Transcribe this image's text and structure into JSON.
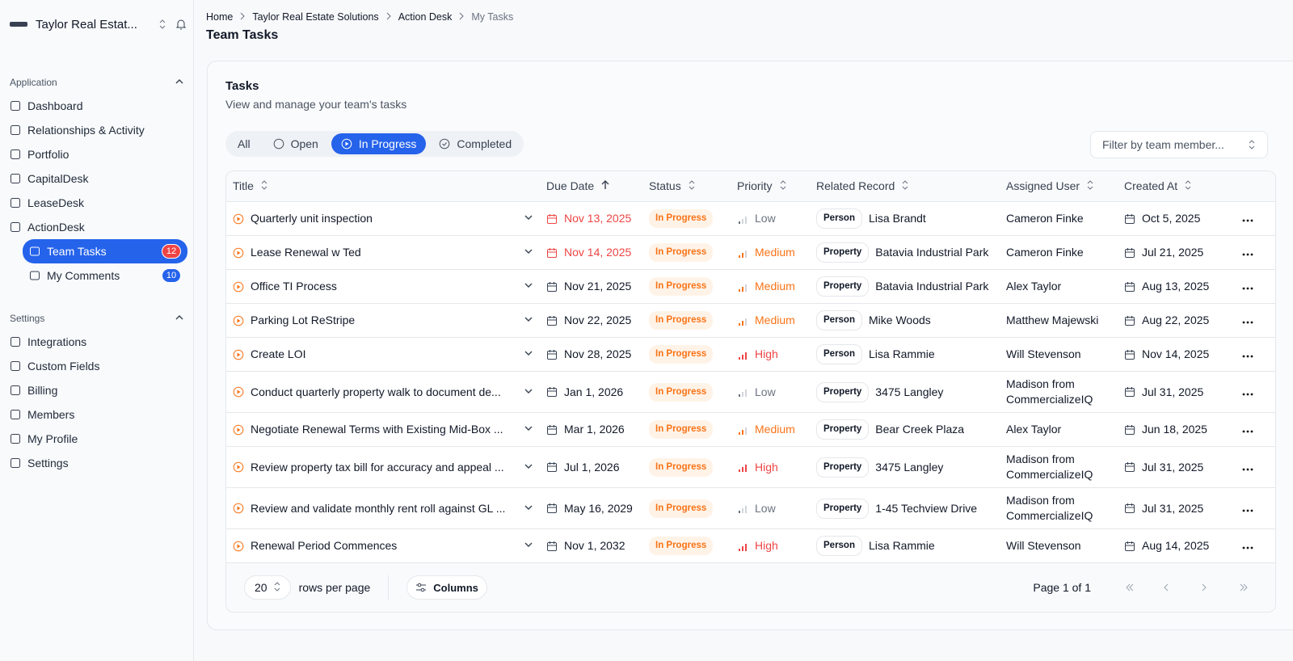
{
  "sidebar": {
    "org_name": "Taylor Real Estat...",
    "sections": [
      {
        "title": "Application",
        "items": [
          {
            "label": "Dashboard"
          },
          {
            "label": "Relationships & Activity"
          },
          {
            "label": "Portfolio"
          },
          {
            "label": "CapitalDesk"
          },
          {
            "label": "LeaseDesk"
          },
          {
            "label": "ActionDesk",
            "children": [
              {
                "label": "Team Tasks",
                "badge": 12,
                "badge_color": "#ef4444",
                "selected": true
              },
              {
                "label": "My Comments",
                "badge": 10,
                "badge_color": "#2563eb"
              }
            ]
          }
        ]
      },
      {
        "title": "Settings",
        "items": [
          {
            "label": "Integrations"
          },
          {
            "label": "Custom Fields"
          },
          {
            "label": "Billing"
          },
          {
            "label": "Members"
          },
          {
            "label": "My Profile"
          },
          {
            "label": "Settings"
          }
        ]
      }
    ]
  },
  "breadcrumb": [
    "Home",
    "Taylor Real Estate Solutions",
    "Action Desk",
    "My Tasks"
  ],
  "page_title": "Team Tasks",
  "card": {
    "title": "Tasks",
    "subtitle": "View and manage your team's tasks",
    "tabs": [
      {
        "label": "All"
      },
      {
        "label": "Open"
      },
      {
        "label": "In Progress",
        "selected": true
      },
      {
        "label": "Completed"
      }
    ],
    "filter_placeholder": "Filter by team member...",
    "priority_colors": {
      "Low": "#6b7280",
      "Medium": "#f97316",
      "High": "#ef4444"
    },
    "table": {
      "columns": [
        {
          "label": "Title"
        },
        {
          "label": "Due Date",
          "sort": "asc"
        },
        {
          "label": "Status"
        },
        {
          "label": "Priority"
        },
        {
          "label": "Related Record"
        },
        {
          "label": "Assigned User"
        },
        {
          "label": "Created At"
        }
      ],
      "rows": [
        {
          "title": "Quarterly unit inspection",
          "due_date": "Nov 13, 2025",
          "due_color": "#ef4444",
          "status": "In Progress",
          "priority": "Low",
          "record_type": "Person",
          "record_name": "Lisa Brandt",
          "assigned_user": "Cameron Finke",
          "created_at": "Oct 5, 2025"
        },
        {
          "title": "Lease Renewal w Ted",
          "due_date": "Nov 14, 2025",
          "due_color": "#ef4444",
          "status": "In Progress",
          "priority": "Medium",
          "record_type": "Property",
          "record_name": "Batavia Industrial Park",
          "assigned_user": "Cameron Finke",
          "created_at": "Jul 21, 2025"
        },
        {
          "title": "Office TI Process",
          "due_date": "Nov 21, 2025",
          "status": "In Progress",
          "priority": "Medium",
          "record_type": "Property",
          "record_name": "Batavia Industrial Park",
          "assigned_user": "Alex Taylor",
          "created_at": "Aug 13, 2025"
        },
        {
          "title": "Parking Lot ReStripe",
          "due_date": "Nov 22, 2025",
          "status": "In Progress",
          "priority": "Medium",
          "record_type": "Person",
          "record_name": "Mike Woods",
          "assigned_user": "Matthew Majewski",
          "created_at": "Aug 22, 2025"
        },
        {
          "title": "Create LOI",
          "due_date": "Nov 28, 2025",
          "status": "In Progress",
          "priority": "High",
          "record_type": "Person",
          "record_name": "Lisa Rammie",
          "assigned_user": "Will Stevenson",
          "created_at": "Nov 14, 2025"
        },
        {
          "title": "Conduct quarterly property walk to document de...",
          "due_date": "Jan 1, 2026",
          "status": "In Progress",
          "priority": "Low",
          "record_type": "Property",
          "record_name": "3475 Langley",
          "assigned_user": "Madison from CommercializeIQ",
          "created_at": "Jul 31, 2025"
        },
        {
          "title": "Negotiate Renewal Terms with Existing Mid-Box ...",
          "due_date": "Mar 1, 2026",
          "status": "In Progress",
          "priority": "Medium",
          "record_type": "Property",
          "record_name": "Bear Creek Plaza",
          "assigned_user": "Alex Taylor",
          "created_at": "Jun 18, 2025"
        },
        {
          "title": "Review property tax bill for accuracy and appeal ...",
          "due_date": "Jul 1, 2026",
          "status": "In Progress",
          "priority": "High",
          "record_type": "Property",
          "record_name": "3475 Langley",
          "assigned_user": "Madison from CommercializeIQ",
          "created_at": "Jul 31, 2025"
        },
        {
          "title": "Review and validate monthly rent roll against GL ...",
          "due_date": "May 16, 2029",
          "status": "In Progress",
          "priority": "Low",
          "record_type": "Property",
          "record_name": "1-45 Techview Drive",
          "assigned_user": "Madison from CommercializeIQ",
          "created_at": "Jul 31, 2025"
        },
        {
          "title": "Renewal Period Commences",
          "due_date": "Nov 1, 2032",
          "status": "In Progress",
          "priority": "High",
          "record_type": "Person",
          "record_name": "Lisa Rammie",
          "assigned_user": "Will Stevenson",
          "created_at": "Aug 14, 2025"
        }
      ]
    },
    "footer": {
      "page_size": 20,
      "rows_per_page_label": "rows per page",
      "columns_button": "Columns",
      "page_info": "Page 1 of 1"
    }
  }
}
